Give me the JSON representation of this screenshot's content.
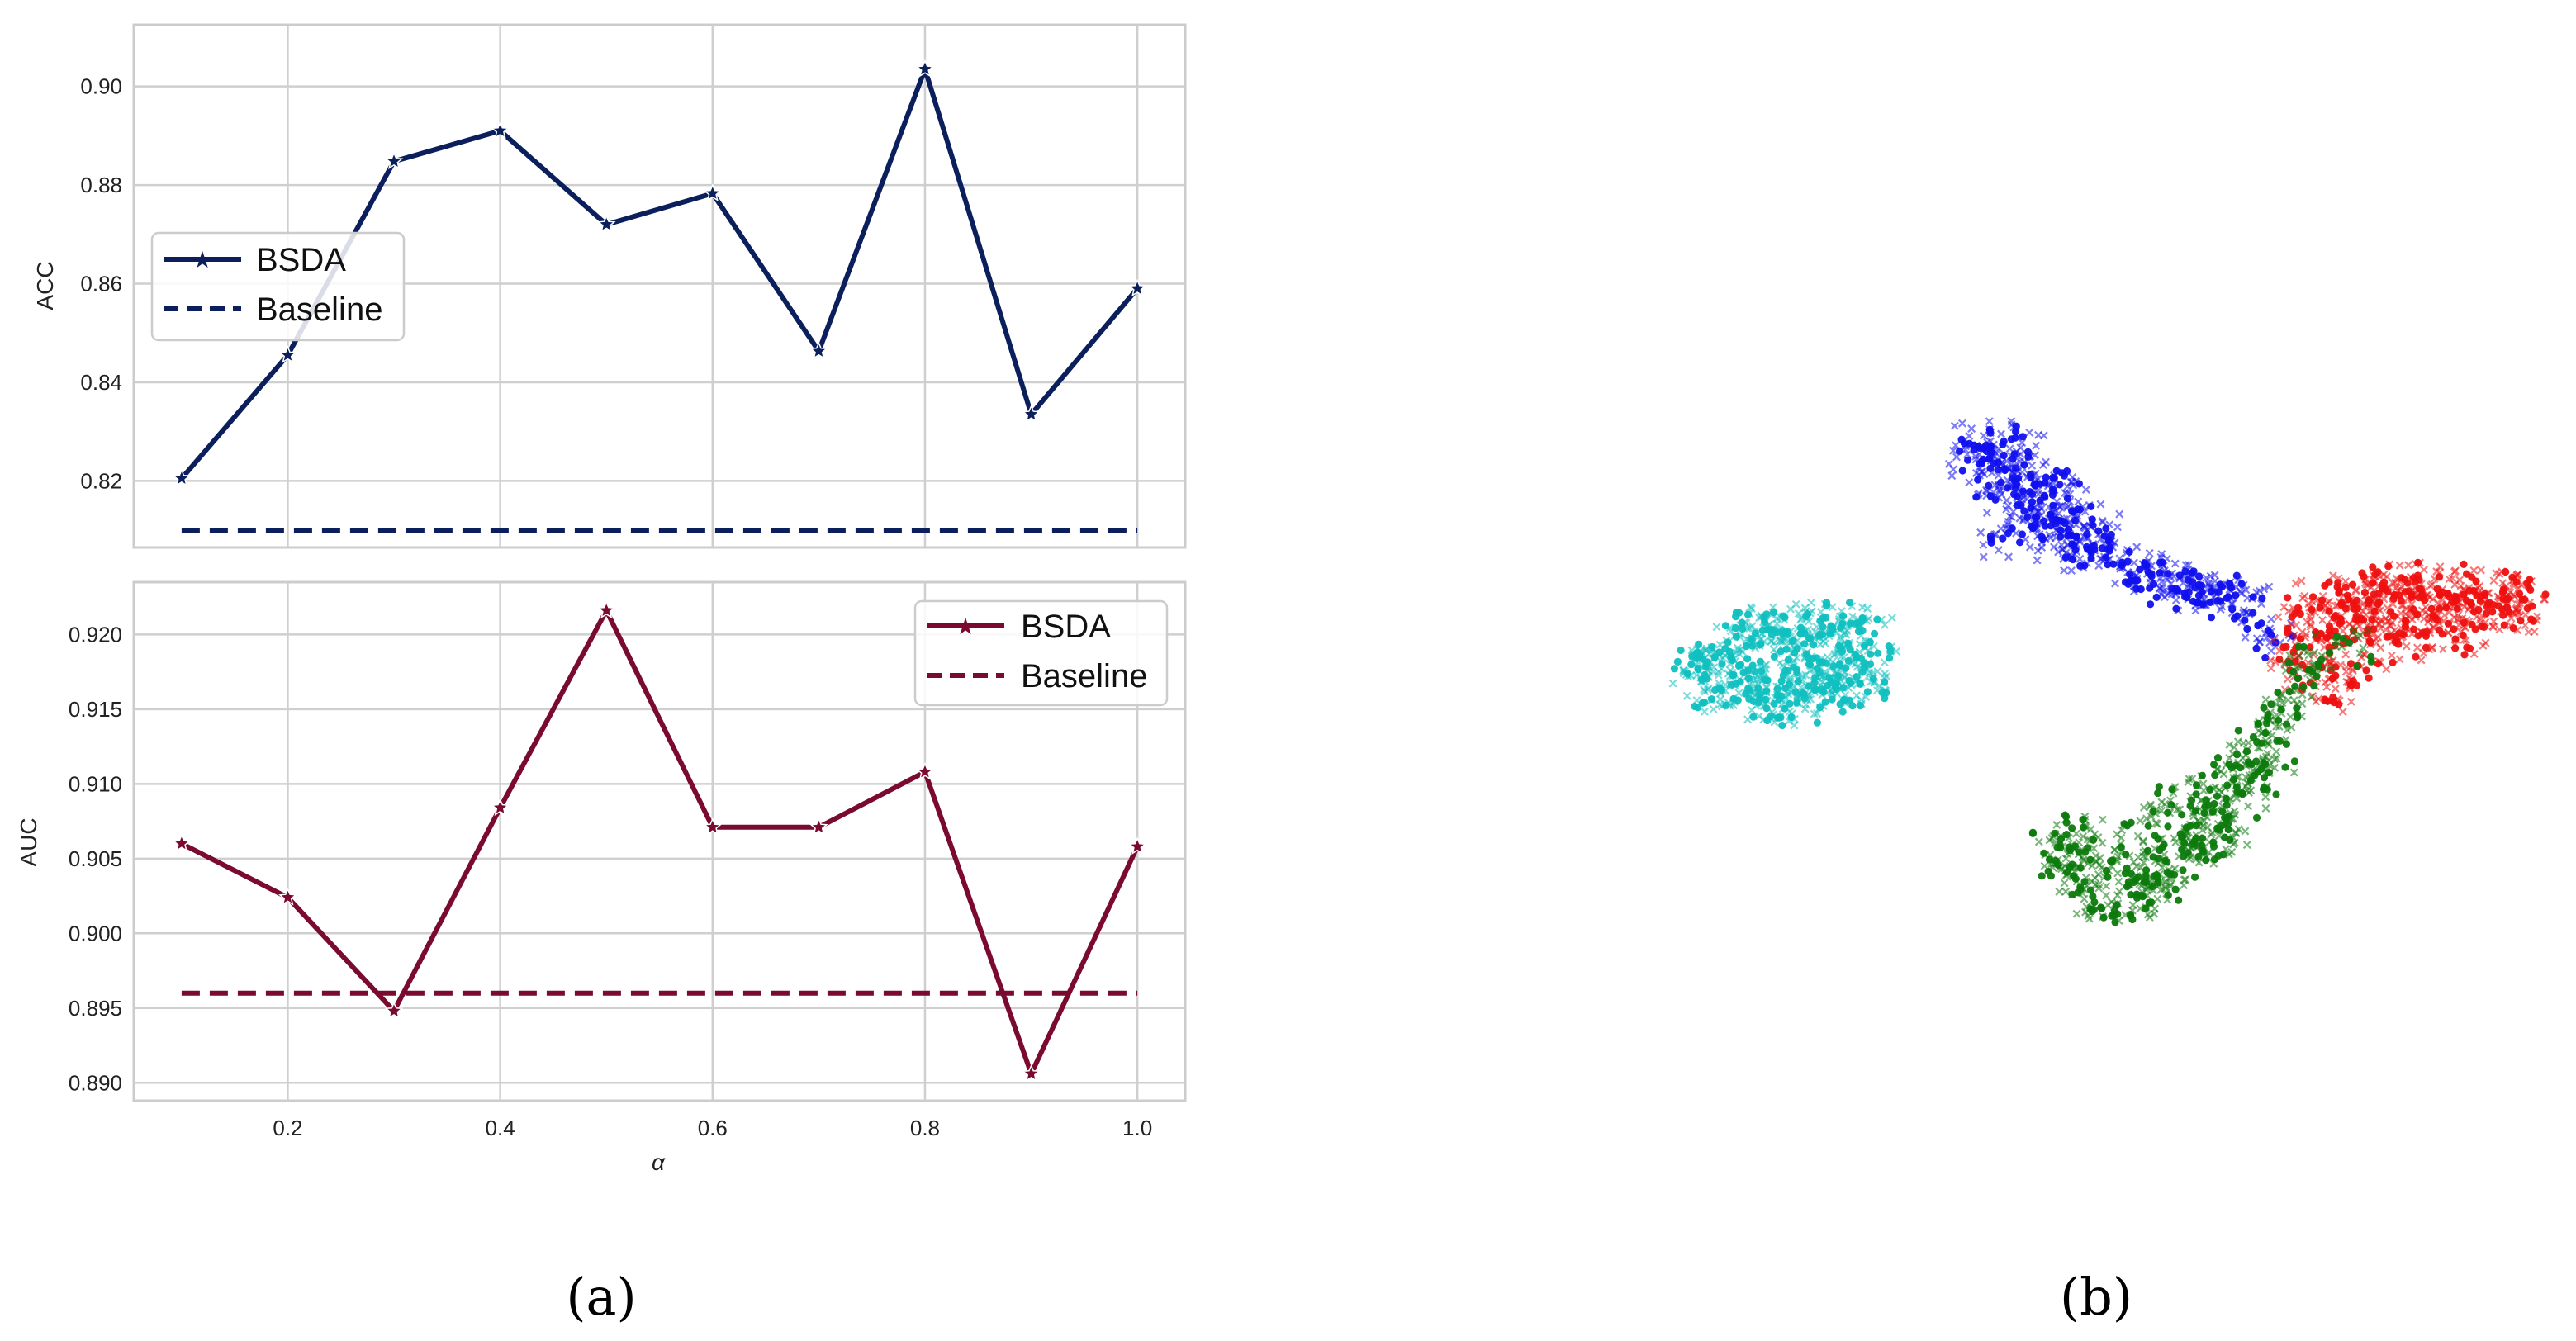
{
  "panels": [
    "(a)",
    "(b)"
  ],
  "chart_data": [
    {
      "type": "line",
      "xlabel": "α",
      "ylabel": "ACC",
      "x": [
        0.1,
        0.2,
        0.3,
        0.4,
        0.5,
        0.6,
        0.7,
        0.8,
        0.9,
        1.0
      ],
      "xticks": [
        "0.2",
        "0.4",
        "0.6",
        "0.8",
        "1.0"
      ],
      "yticks": [
        "0.82",
        "0.84",
        "0.86",
        "0.88",
        "0.90"
      ],
      "ylim": [
        0.8065,
        0.9125
      ],
      "xlim": [
        0.055,
        1.045
      ],
      "grid": true,
      "legend_position": "center-left",
      "color": "#0b1f5c",
      "series": [
        {
          "name": "BSDA",
          "style": "solid-star",
          "values": [
            0.8205,
            0.8455,
            0.8848,
            0.891,
            0.872,
            0.8783,
            0.8463,
            0.9035,
            0.8335,
            0.859
          ]
        },
        {
          "name": "Baseline",
          "style": "dashed",
          "values": [
            0.81,
            0.81,
            0.81,
            0.81,
            0.81,
            0.81,
            0.81,
            0.81,
            0.81,
            0.81
          ]
        }
      ]
    },
    {
      "type": "line",
      "xlabel": "α",
      "ylabel": "AUC",
      "x": [
        0.1,
        0.2,
        0.3,
        0.4,
        0.5,
        0.6,
        0.7,
        0.8,
        0.9,
        1.0
      ],
      "xticks": [
        "0.2",
        "0.4",
        "0.6",
        "0.8",
        "1.0"
      ],
      "yticks": [
        "0.890",
        "0.895",
        "0.900",
        "0.905",
        "0.910",
        "0.915",
        "0.920"
      ],
      "ylim": [
        0.8888,
        0.9235
      ],
      "xlim": [
        0.055,
        1.045
      ],
      "grid": true,
      "legend_position": "top-right",
      "color": "#7a0a2e",
      "series": [
        {
          "name": "BSDA",
          "style": "solid-star",
          "values": [
            0.906,
            0.9024,
            0.8948,
            0.9084,
            0.9216,
            0.9071,
            0.9071,
            0.9108,
            0.8906,
            0.9058
          ]
        },
        {
          "name": "Baseline",
          "style": "dashed",
          "values": [
            0.896,
            0.896,
            0.896,
            0.896,
            0.896,
            0.896,
            0.896,
            0.896,
            0.896,
            0.896
          ]
        }
      ]
    },
    {
      "type": "scatter",
      "axes_visible": false,
      "clusters": [
        {
          "color": "#1010ee",
          "points": [
            [
              -0.3,
              0.78
            ],
            [
              -0.28,
              0.74
            ],
            [
              -0.26,
              0.72
            ],
            [
              -0.24,
              0.68
            ],
            [
              -0.22,
              0.63
            ],
            [
              -0.2,
              0.58
            ],
            [
              -0.18,
              0.55
            ],
            [
              -0.15,
              0.52
            ],
            [
              -0.12,
              0.48
            ],
            [
              -0.08,
              0.44
            ],
            [
              -0.05,
              0.41
            ],
            [
              0.0,
              0.38
            ],
            [
              0.03,
              0.35
            ],
            [
              0.06,
              0.33
            ],
            [
              0.1,
              0.3
            ],
            [
              0.14,
              0.28
            ],
            [
              0.18,
              0.26
            ],
            [
              0.22,
              0.25
            ],
            [
              0.26,
              0.25
            ],
            [
              0.3,
              0.24
            ],
            [
              -0.33,
              0.8
            ],
            [
              -0.25,
              0.8
            ],
            [
              -0.2,
              0.76
            ],
            [
              -0.16,
              0.7
            ],
            [
              -0.12,
              0.64
            ],
            [
              -0.1,
              0.58
            ],
            [
              -0.06,
              0.52
            ],
            [
              -0.02,
              0.47
            ],
            [
              -0.34,
              0.73
            ],
            [
              -0.29,
              0.66
            ],
            [
              -0.25,
              0.6
            ],
            [
              -0.21,
              0.52
            ],
            [
              -0.17,
              0.46
            ],
            [
              -0.13,
              0.42
            ],
            [
              -0.08,
              0.38
            ],
            [
              0.08,
              0.36
            ],
            [
              0.12,
              0.31
            ],
            [
              0.16,
              0.29
            ],
            [
              0.2,
              0.28
            ],
            [
              0.24,
              0.27
            ],
            [
              0.28,
              0.22
            ],
            [
              0.34,
              0.21
            ],
            [
              0.36,
              0.12
            ],
            [
              0.39,
              0.08
            ],
            [
              -0.27,
              0.45
            ],
            [
              -0.22,
              0.7
            ],
            [
              -0.18,
              0.62
            ],
            [
              -0.14,
              0.56
            ],
            [
              -0.09,
              0.5
            ],
            [
              -0.04,
              0.44
            ]
          ]
        },
        {
          "color": "#ee1010",
          "points": [
            [
              0.55,
              0.25
            ],
            [
              0.6,
              0.27
            ],
            [
              0.65,
              0.29
            ],
            [
              0.7,
              0.3
            ],
            [
              0.75,
              0.3
            ],
            [
              0.8,
              0.29
            ],
            [
              0.85,
              0.28
            ],
            [
              0.9,
              0.27
            ],
            [
              0.95,
              0.26
            ],
            [
              1.0,
              0.26
            ],
            [
              0.52,
              0.2
            ],
            [
              0.58,
              0.21
            ],
            [
              0.63,
              0.22
            ],
            [
              0.68,
              0.23
            ],
            [
              0.73,
              0.22
            ],
            [
              0.78,
              0.21
            ],
            [
              0.83,
              0.21
            ],
            [
              0.88,
              0.2
            ],
            [
              0.93,
              0.19
            ],
            [
              0.98,
              0.18
            ],
            [
              0.5,
              0.15
            ],
            [
              0.55,
              0.16
            ],
            [
              0.6,
              0.15
            ],
            [
              0.65,
              0.14
            ],
            [
              0.7,
              0.13
            ],
            [
              0.75,
              0.12
            ],
            [
              0.8,
              0.12
            ],
            [
              0.85,
              0.1
            ],
            [
              0.45,
              0.1
            ],
            [
              0.48,
              0.06
            ],
            [
              0.52,
              0.03
            ],
            [
              0.56,
              0.0
            ],
            [
              0.6,
              -0.02
            ],
            [
              0.64,
              0.05
            ],
            [
              0.7,
              0.08
            ],
            [
              0.42,
              0.02
            ],
            [
              0.46,
              -0.04
            ],
            [
              0.5,
              -0.08
            ],
            [
              0.55,
              -0.1
            ],
            [
              0.6,
              0.1
            ],
            [
              0.67,
              0.18
            ],
            [
              0.72,
              0.26
            ],
            [
              0.82,
              0.24
            ],
            [
              0.92,
              0.23
            ],
            [
              0.97,
              0.22
            ],
            [
              0.62,
              0.26
            ],
            [
              0.76,
              0.17
            ],
            [
              0.86,
              0.16
            ],
            [
              0.44,
              0.18
            ],
            [
              0.48,
              0.24
            ]
          ]
        },
        {
          "color": "#0c7a0c",
          "points": [
            [
              0.3,
              -0.38
            ],
            [
              0.28,
              -0.42
            ],
            [
              0.26,
              -0.46
            ],
            [
              0.24,
              -0.5
            ],
            [
              0.22,
              -0.54
            ],
            [
              0.2,
              -0.58
            ],
            [
              0.18,
              -0.62
            ],
            [
              0.16,
              -0.66
            ],
            [
              0.14,
              -0.7
            ],
            [
              0.12,
              -0.74
            ],
            [
              0.1,
              -0.78
            ],
            [
              0.08,
              -0.82
            ],
            [
              0.05,
              -0.84
            ],
            [
              0.02,
              -0.85
            ],
            [
              -0.02,
              -0.84
            ],
            [
              -0.05,
              -0.82
            ],
            [
              -0.08,
              -0.78
            ],
            [
              -0.1,
              -0.74
            ],
            [
              -0.12,
              -0.7
            ],
            [
              -0.14,
              -0.66
            ],
            [
              0.34,
              -0.3
            ],
            [
              0.32,
              -0.34
            ],
            [
              0.36,
              -0.26
            ],
            [
              0.38,
              -0.22
            ],
            [
              0.4,
              -0.18
            ],
            [
              0.42,
              -0.12
            ],
            [
              0.44,
              -0.06
            ],
            [
              0.47,
              0.0
            ],
            [
              0.5,
              0.05
            ],
            [
              0.36,
              -0.4
            ],
            [
              0.34,
              -0.46
            ],
            [
              0.32,
              -0.52
            ],
            [
              0.3,
              -0.58
            ],
            [
              0.26,
              -0.62
            ],
            [
              0.22,
              -0.66
            ],
            [
              0.18,
              -0.7
            ],
            [
              0.14,
              -0.78
            ],
            [
              0.08,
              -0.76
            ],
            [
              0.04,
              -0.72
            ],
            [
              0.0,
              -0.68
            ],
            [
              -0.04,
              -0.72
            ],
            [
              -0.08,
              -0.66
            ],
            [
              0.06,
              -0.62
            ],
            [
              0.1,
              -0.56
            ],
            [
              0.14,
              -0.5
            ],
            [
              0.18,
              -0.46
            ],
            [
              -0.1,
              -0.6
            ],
            [
              -0.06,
              -0.6
            ],
            [
              0.4,
              -0.34
            ],
            [
              0.58,
              0.06
            ]
          ]
        },
        {
          "color": "#10c0c0",
          "points": [
            [
              -1.0,
              0.0
            ],
            [
              -0.98,
              -0.04
            ],
            [
              -0.95,
              0.04
            ],
            [
              -0.93,
              -0.08
            ],
            [
              -0.9,
              0.08
            ],
            [
              -0.88,
              -0.12
            ],
            [
              -0.85,
              0.12
            ],
            [
              -0.83,
              -0.14
            ],
            [
              -0.8,
              0.14
            ],
            [
              -0.78,
              -0.15
            ],
            [
              -0.75,
              0.15
            ],
            [
              -0.72,
              -0.14
            ],
            [
              -0.7,
              0.16
            ],
            [
              -0.67,
              -0.12
            ],
            [
              -0.65,
              0.16
            ],
            [
              -0.62,
              -0.1
            ],
            [
              -0.6,
              0.14
            ],
            [
              -0.58,
              -0.06
            ],
            [
              -0.56,
              0.1
            ],
            [
              -0.55,
              0.0
            ],
            [
              -0.96,
              -0.1
            ],
            [
              -0.92,
              0.02
            ],
            [
              -0.88,
              -0.04
            ],
            [
              -0.84,
              0.04
            ],
            [
              -0.8,
              -0.06
            ],
            [
              -0.76,
              0.06
            ],
            [
              -0.72,
              -0.04
            ],
            [
              -0.68,
              0.06
            ],
            [
              -0.64,
              -0.02
            ],
            [
              -0.6,
              0.04
            ],
            [
              -0.86,
              0.08
            ],
            [
              -0.82,
              -0.1
            ],
            [
              -0.78,
              0.1
            ],
            [
              -0.74,
              -0.1
            ],
            [
              -0.7,
              0.1
            ],
            [
              -0.66,
              -0.08
            ],
            [
              -0.62,
              0.1
            ],
            [
              -0.9,
              -0.02
            ],
            [
              -0.94,
              0.0
            ],
            [
              -0.86,
              -0.08
            ],
            [
              -0.8,
              0.0
            ],
            [
              -0.74,
              0.0
            ],
            [
              -0.68,
              -0.02
            ],
            [
              -0.76,
              -0.12
            ],
            [
              -0.7,
              -0.1
            ],
            [
              -0.84,
              0.14
            ],
            [
              -0.76,
              0.12
            ],
            [
              -0.66,
              0.12
            ],
            [
              -0.58,
              -0.02
            ],
            [
              -0.57,
              -0.04
            ]
          ]
        }
      ]
    }
  ]
}
